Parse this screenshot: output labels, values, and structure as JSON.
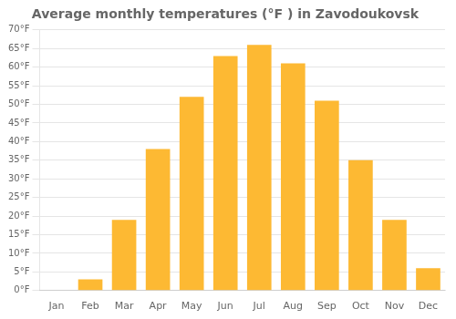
{
  "chart_data": {
    "type": "bar",
    "title": "Average monthly temperatures (°F ) in Zavodoukovsk",
    "categories": [
      "Jan",
      "Feb",
      "Mar",
      "Apr",
      "May",
      "Jun",
      "Jul",
      "Aug",
      "Sep",
      "Oct",
      "Nov",
      "Dec"
    ],
    "values": [
      0,
      3,
      19,
      38,
      52,
      63,
      66,
      61,
      51,
      35,
      19,
      6
    ],
    "color": "#FDB933",
    "ylim": [
      0,
      70
    ],
    "yticks": [
      {
        "value": 0,
        "label": "0°F"
      },
      {
        "value": 5,
        "label": "5°F"
      },
      {
        "value": 10,
        "label": "10°F"
      },
      {
        "value": 15,
        "label": "15°F"
      },
      {
        "value": 20,
        "label": "20°F"
      },
      {
        "value": 25,
        "label": "25°F"
      },
      {
        "value": 30,
        "label": "30°F"
      },
      {
        "value": 35,
        "label": "35°F"
      },
      {
        "value": 40,
        "label": "40°F"
      },
      {
        "value": 45,
        "label": "45°F"
      },
      {
        "value": 50,
        "label": "50°F"
      },
      {
        "value": 55,
        "label": "55°F"
      },
      {
        "value": 60,
        "label": "60°F"
      },
      {
        "value": 65,
        "label": "65°F"
      },
      {
        "value": 70,
        "label": "70°F"
      }
    ],
    "grid": true
  }
}
